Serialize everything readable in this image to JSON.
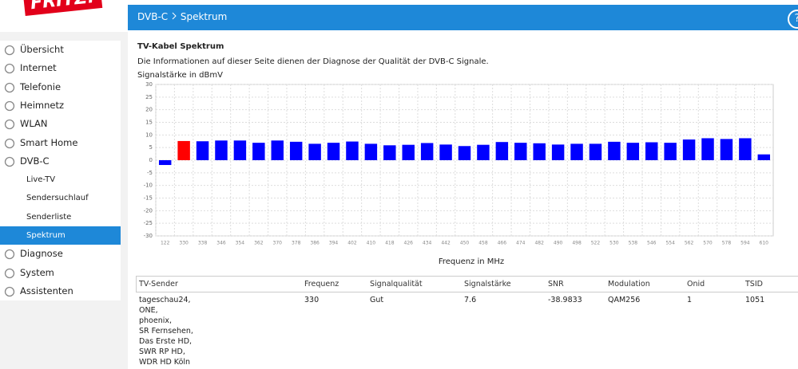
{
  "header": {
    "logo": "FRITZ!",
    "breadcrumb": [
      "DVB-C",
      "Spektrum"
    ],
    "help": "?"
  },
  "nav": [
    {
      "label": "Übersicht",
      "level": 1
    },
    {
      "label": "Internet",
      "level": 1
    },
    {
      "label": "Telefonie",
      "level": 1
    },
    {
      "label": "Heimnetz",
      "level": 1
    },
    {
      "label": "WLAN",
      "level": 1
    },
    {
      "label": "Smart Home",
      "level": 1
    },
    {
      "label": "DVB-C",
      "level": 1
    },
    {
      "label": "Live-TV",
      "level": 2
    },
    {
      "label": "Sendersuchlauf",
      "level": 2
    },
    {
      "label": "Senderliste",
      "level": 2
    },
    {
      "label": "Spektrum",
      "level": 2,
      "active": true
    },
    {
      "label": "Diagnose",
      "level": 1
    },
    {
      "label": "System",
      "level": 1
    },
    {
      "label": "Assistenten",
      "level": 1
    }
  ],
  "content": {
    "title": "TV-Kabel Spektrum",
    "description": "Die Informationen auf dieser Seite dienen der Diagnose der Qualität der DVB-C Signale."
  },
  "chart_data": {
    "type": "bar",
    "y_label": "Signalstärke in dBmV",
    "x_label": "Frequenz in MHz",
    "categories": [
      "122",
      "330",
      "338",
      "346",
      "354",
      "362",
      "370",
      "378",
      "386",
      "394",
      "402",
      "410",
      "418",
      "426",
      "434",
      "442",
      "450",
      "458",
      "466",
      "474",
      "482",
      "490",
      "498",
      "522",
      "530",
      "538",
      "546",
      "554",
      "562",
      "570",
      "578",
      "594",
      "610"
    ],
    "values": [
      -1.9,
      7.6,
      7.5,
      7.8,
      7.8,
      6.9,
      7.8,
      7.3,
      6.5,
      6.9,
      7.4,
      6.5,
      5.9,
      6.1,
      6.8,
      6.2,
      5.6,
      6.1,
      7.2,
      6.9,
      6.7,
      6.2,
      6.5,
      6.5,
      7.3,
      6.9,
      7.1,
      6.9,
      8.2,
      8.7,
      8.4,
      8.7,
      2.3
    ],
    "color": "#0000ff",
    "bar_colors": [
      "#0000ff",
      "#ff0000",
      "#0000ff",
      "#0000ff",
      "#0000ff",
      "#0000ff",
      "#0000ff",
      "#0000ff",
      "#0000ff",
      "#0000ff",
      "#0000ff",
      "#0000ff",
      "#0000ff",
      "#0000ff",
      "#0000ff",
      "#0000ff",
      "#0000ff",
      "#0000ff",
      "#0000ff",
      "#0000ff",
      "#0000ff",
      "#0000ff",
      "#0000ff",
      "#0000ff",
      "#0000ff",
      "#0000ff",
      "#0000ff",
      "#0000ff",
      "#0000ff",
      "#0000ff",
      "#0000ff",
      "#0000ff",
      "#0000ff"
    ],
    "ylim": [
      -30,
      30
    ],
    "yticks": [
      30,
      25,
      20,
      15,
      10,
      5,
      0,
      -5,
      -10,
      -15,
      -20,
      -25,
      -30
    ],
    "grid": true
  },
  "table": {
    "header": [
      "TV-Sender",
      "Frequenz",
      "Signalqualität",
      "Signalstärke",
      "SNR",
      "Modulation",
      "Onid",
      "TSID"
    ],
    "rows": [
      [
        [
          "tageschau24,",
          "ONE,",
          "phoenix,",
          "SR Fernsehen,",
          "Das Erste HD,",
          "SWR RP HD,",
          "WDR HD Köln"
        ],
        "330",
        "Gut",
        "7.6",
        "-38.9833",
        "QAM256",
        "1",
        "1051"
      ]
    ]
  }
}
